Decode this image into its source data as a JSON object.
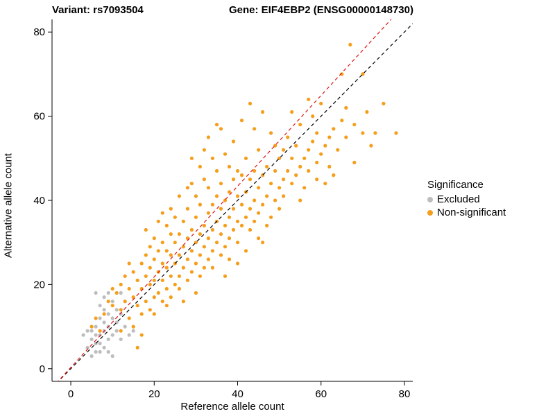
{
  "titles": {
    "variant": "Variant: rs7093504",
    "gene": "Gene: EIF4EBP2 (ENSG00000148730)"
  },
  "chart_data": {
    "type": "scatter",
    "title": "",
    "xlabel": "Reference allele count",
    "ylabel": "Alternative allele count",
    "xlim": [
      -4.5,
      82
    ],
    "ylim": [
      -3,
      83
    ],
    "xticks": [
      0,
      20,
      40,
      60,
      80
    ],
    "yticks": [
      0,
      20,
      40,
      60,
      80
    ],
    "grid": false,
    "legend": {
      "title": "Significance",
      "position": "right",
      "entries": [
        {
          "label": "Excluded",
          "color": "#bdbdbd"
        },
        {
          "label": "Non-significant",
          "color": "#f59e1b"
        }
      ]
    },
    "lines": [
      {
        "name": "identity-line",
        "color": "#000000",
        "style": "dashed",
        "slope": 1.0,
        "intercept": 0
      },
      {
        "name": "fit-line",
        "color": "#e01010",
        "style": "dashed",
        "slope": 1.077,
        "intercept": 0.3
      }
    ],
    "series": [
      {
        "name": "Excluded",
        "color": "#bdbdbd",
        "points": [
          [
            3,
            8
          ],
          [
            4,
            5
          ],
          [
            5,
            7
          ],
          [
            5,
            9
          ],
          [
            5,
            3
          ],
          [
            6,
            4
          ],
          [
            6,
            6
          ],
          [
            6,
            8
          ],
          [
            6,
            10
          ],
          [
            6,
            18
          ],
          [
            7,
            6
          ],
          [
            7,
            8
          ],
          [
            7,
            12
          ],
          [
            7,
            15
          ],
          [
            8,
            5
          ],
          [
            8,
            9
          ],
          [
            8,
            11
          ],
          [
            8,
            14
          ],
          [
            8,
            17
          ],
          [
            9,
            4
          ],
          [
            9,
            7
          ],
          [
            9,
            10
          ],
          [
            9,
            13
          ],
          [
            10,
            3
          ],
          [
            10,
            8
          ],
          [
            10,
            12
          ],
          [
            10,
            16
          ],
          [
            11,
            9
          ],
          [
            11,
            11
          ],
          [
            11,
            14
          ],
          [
            12,
            7
          ],
          [
            12,
            13
          ],
          [
            12,
            18
          ],
          [
            13,
            10
          ],
          [
            13,
            16
          ],
          [
            14,
            8
          ],
          [
            15,
            9
          ],
          [
            4,
            9
          ],
          [
            7,
            4
          ],
          [
            9,
            18
          ]
        ]
      },
      {
        "name": "Non-significant",
        "color": "#f59e1b",
        "points": [
          [
            5,
            10
          ],
          [
            6,
            12
          ],
          [
            7,
            9
          ],
          [
            8,
            13
          ],
          [
            9,
            16
          ],
          [
            10,
            19
          ],
          [
            12,
            9
          ],
          [
            14,
            25
          ],
          [
            16,
            5
          ],
          [
            17,
            8
          ],
          [
            10,
            15
          ],
          [
            11,
            18
          ],
          [
            12,
            14
          ],
          [
            12,
            20
          ],
          [
            13,
            16
          ],
          [
            13,
            22
          ],
          [
            14,
            12
          ],
          [
            14,
            19
          ],
          [
            15,
            17
          ],
          [
            15,
            23
          ],
          [
            15,
            10
          ],
          [
            16,
            15
          ],
          [
            16,
            21
          ],
          [
            17,
            13
          ],
          [
            17,
            19
          ],
          [
            17,
            25
          ],
          [
            18,
            16
          ],
          [
            18,
            22
          ],
          [
            18,
            27
          ],
          [
            18,
            33
          ],
          [
            19,
            14
          ],
          [
            19,
            20
          ],
          [
            19,
            24
          ],
          [
            19,
            29
          ],
          [
            20,
            13
          ],
          [
            20,
            17
          ],
          [
            20,
            21
          ],
          [
            20,
            26
          ],
          [
            20,
            31
          ],
          [
            21,
            18
          ],
          [
            21,
            23
          ],
          [
            21,
            28
          ],
          [
            21,
            35
          ],
          [
            22,
            16
          ],
          [
            22,
            21
          ],
          [
            22,
            25
          ],
          [
            22,
            30
          ],
          [
            22,
            37
          ],
          [
            23,
            15
          ],
          [
            23,
            19
          ],
          [
            23,
            24
          ],
          [
            23,
            28
          ],
          [
            23,
            34
          ],
          [
            24,
            17
          ],
          [
            24,
            22
          ],
          [
            24,
            27
          ],
          [
            24,
            32
          ],
          [
            24,
            38
          ],
          [
            25,
            20
          ],
          [
            25,
            25
          ],
          [
            25,
            30
          ],
          [
            25,
            36
          ],
          [
            26,
            19
          ],
          [
            26,
            22
          ],
          [
            26,
            27
          ],
          [
            26,
            32
          ],
          [
            26,
            41
          ],
          [
            27,
            16
          ],
          [
            27,
            24
          ],
          [
            27,
            29
          ],
          [
            27,
            35
          ],
          [
            28,
            21
          ],
          [
            28,
            26
          ],
          [
            28,
            31
          ],
          [
            28,
            38
          ],
          [
            28,
            43
          ],
          [
            29,
            23
          ],
          [
            29,
            28
          ],
          [
            29,
            33
          ],
          [
            29,
            44
          ],
          [
            29,
            50
          ],
          [
            30,
            18
          ],
          [
            30,
            25
          ],
          [
            30,
            30
          ],
          [
            30,
            36
          ],
          [
            30,
            41
          ],
          [
            31,
            22
          ],
          [
            31,
            27
          ],
          [
            31,
            32
          ],
          [
            31,
            39
          ],
          [
            31,
            48
          ],
          [
            32,
            24
          ],
          [
            32,
            29
          ],
          [
            32,
            34
          ],
          [
            32,
            45
          ],
          [
            32,
            52
          ],
          [
            33,
            26
          ],
          [
            33,
            31
          ],
          [
            33,
            37
          ],
          [
            33,
            43
          ],
          [
            33,
            55
          ],
          [
            34,
            24
          ],
          [
            34,
            28
          ],
          [
            34,
            33
          ],
          [
            34,
            39
          ],
          [
            34,
            50
          ],
          [
            35,
            30
          ],
          [
            35,
            35
          ],
          [
            35,
            41
          ],
          [
            35,
            47
          ],
          [
            35,
            58
          ],
          [
            36,
            27
          ],
          [
            36,
            32
          ],
          [
            36,
            38
          ],
          [
            36,
            44
          ],
          [
            36,
            57
          ],
          [
            37,
            22
          ],
          [
            37,
            29
          ],
          [
            37,
            34
          ],
          [
            37,
            40
          ],
          [
            37,
            51
          ],
          [
            38,
            26
          ],
          [
            38,
            31
          ],
          [
            38,
            36
          ],
          [
            38,
            42
          ],
          [
            38,
            48
          ],
          [
            39,
            33
          ],
          [
            39,
            38
          ],
          [
            39,
            45
          ],
          [
            39,
            54
          ],
          [
            40,
            25
          ],
          [
            40,
            30
          ],
          [
            40,
            35
          ],
          [
            40,
            41
          ],
          [
            40,
            47
          ],
          [
            41,
            34
          ],
          [
            41,
            39
          ],
          [
            41,
            46
          ],
          [
            41,
            59
          ],
          [
            42,
            28
          ],
          [
            42,
            36
          ],
          [
            42,
            42
          ],
          [
            42,
            50
          ],
          [
            43,
            33
          ],
          [
            43,
            38
          ],
          [
            43,
            45
          ],
          [
            43,
            63
          ],
          [
            44,
            35
          ],
          [
            44,
            40
          ],
          [
            44,
            47
          ],
          [
            44,
            57
          ],
          [
            45,
            31
          ],
          [
            45,
            37
          ],
          [
            45,
            43
          ],
          [
            45,
            52
          ],
          [
            46,
            30
          ],
          [
            46,
            39
          ],
          [
            46,
            46
          ],
          [
            46,
            61
          ],
          [
            47,
            34
          ],
          [
            47,
            41
          ],
          [
            47,
            48
          ],
          [
            48,
            36
          ],
          [
            48,
            44
          ],
          [
            48,
            56
          ],
          [
            49,
            40
          ],
          [
            49,
            47
          ],
          [
            49,
            53
          ],
          [
            50,
            38
          ],
          [
            50,
            43
          ],
          [
            50,
            50
          ],
          [
            51,
            41
          ],
          [
            51,
            45
          ],
          [
            51,
            52
          ],
          [
            52,
            47
          ],
          [
            52,
            55
          ],
          [
            53,
            44
          ],
          [
            53,
            50
          ],
          [
            53,
            61
          ],
          [
            54,
            46
          ],
          [
            54,
            53
          ],
          [
            55,
            40
          ],
          [
            55,
            48
          ],
          [
            55,
            58
          ],
          [
            56,
            43
          ],
          [
            56,
            50
          ],
          [
            57,
            47
          ],
          [
            57,
            52
          ],
          [
            57,
            64
          ],
          [
            58,
            54
          ],
          [
            58,
            60
          ],
          [
            59,
            45
          ],
          [
            59,
            49
          ],
          [
            59,
            56
          ],
          [
            60,
            51
          ],
          [
            60,
            63
          ],
          [
            61,
            44
          ],
          [
            61,
            53
          ],
          [
            62,
            48
          ],
          [
            62,
            55
          ],
          [
            63,
            46
          ],
          [
            63,
            57
          ],
          [
            64,
            52
          ],
          [
            65,
            59
          ],
          [
            65,
            70
          ],
          [
            66,
            55
          ],
          [
            66,
            62
          ],
          [
            67,
            77
          ],
          [
            68,
            49
          ],
          [
            68,
            58
          ],
          [
            70,
            56
          ],
          [
            70,
            70
          ],
          [
            71,
            61
          ],
          [
            72,
            53
          ],
          [
            73,
            56
          ],
          [
            75,
            63
          ],
          [
            78,
            56
          ]
        ]
      }
    ]
  }
}
